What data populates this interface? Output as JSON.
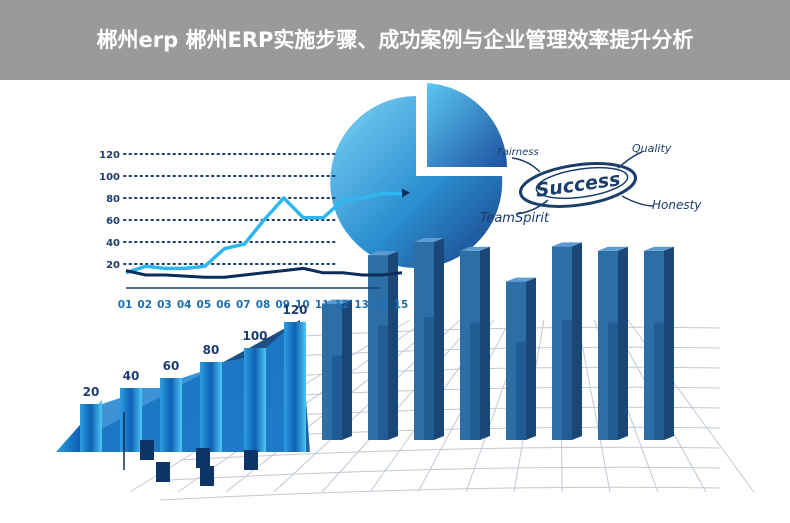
{
  "page_title": "郴州erp 郴州ERP实施步骤、成功案例与企业管理效率提升分析",
  "line_chart": {
    "y_ticks": [
      "120",
      "100",
      "80",
      "60",
      "40",
      "20"
    ],
    "x_ticks": [
      "01",
      "02",
      "03",
      "04",
      "05",
      "06",
      "07",
      "08",
      "09",
      "10",
      "11",
      "12",
      "13",
      "14",
      "15"
    ],
    "series_light": [
      12,
      18,
      16,
      16,
      18,
      34,
      38,
      60,
      80,
      62,
      62,
      78,
      80,
      84,
      84
    ],
    "series_dark": [
      14,
      10,
      10,
      9,
      8,
      8,
      10,
      12,
      14,
      16,
      12,
      12,
      10,
      10,
      12
    ],
    "colors": {
      "light": "#2fb6ee",
      "dark": "#0c2d5c",
      "axis": "#1d3d6e",
      "tick_text": "#1d6fb3"
    }
  },
  "stair_labels": [
    "20",
    "40",
    "60",
    "80",
    "100",
    "120"
  ],
  "word_art": {
    "center": "Success",
    "words": [
      "Fairness",
      "Quality",
      "Honesty",
      "TeamSpirit"
    ],
    "color": "#1a3d6c"
  },
  "bars": {
    "heights": [
      0.62,
      0.84,
      0.9,
      0.86,
      0.72,
      0.88,
      0.86,
      0.86
    ],
    "colors": {
      "front": "#2d6ea7",
      "side": "#1a4775",
      "top": "#5e9bd2"
    }
  }
}
